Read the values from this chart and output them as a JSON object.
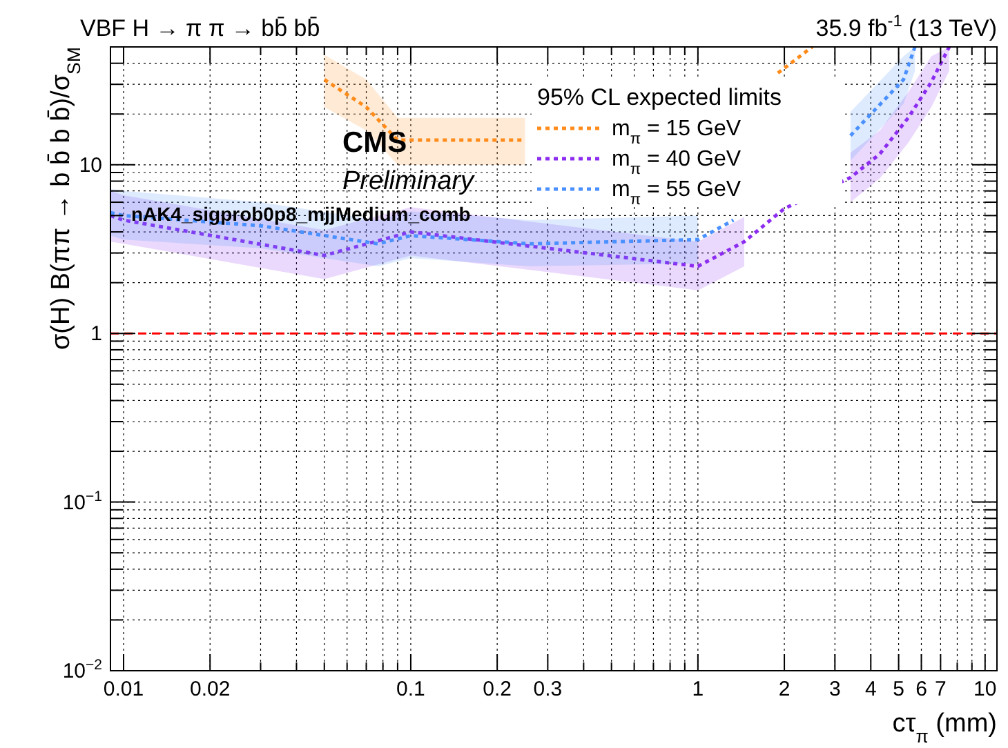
{
  "chart_data": {
    "type": "line",
    "title": "VBF H → π π → bb̄ bb̄",
    "subtitle": "35.9 fb$^{-1}$ (13 TeV)",
    "xlabel": "cτ$_{π}$ (mm)",
    "ylabel": "σ(H) B(ππ → b b̄ b b̄)/σ$_{SM}$",
    "legend_title": "95% CL expected limits",
    "annotations": [
      "CMS",
      "Preliminary",
      "nAK4_sigprob0p8_mjjMedium_comb"
    ],
    "log": "xy",
    "grid": true,
    "legend": "top right",
    "line_style": "dotted",
    "marker": "none",
    "xlim": [
      0.009,
      11
    ],
    "ylim": [
      0.01,
      50
    ],
    "xticks": [
      {
        "value": 0.009,
        "label": null
      },
      0.01,
      0.02,
      {
        "value": 0.03,
        "label": null
      },
      {
        "value": 0.04,
        "label": null
      },
      {
        "value": 0.05,
        "label": null
      },
      {
        "value": 0.06,
        "label": null
      },
      {
        "value": 0.07,
        "label": null
      },
      {
        "value": 0.08,
        "label": null
      },
      {
        "value": 0.09,
        "label": null
      },
      0.1,
      0.2,
      0.3,
      {
        "value": 0.4,
        "label": null
      },
      {
        "value": 0.5,
        "label": null
      },
      {
        "value": 0.6,
        "label": null
      },
      {
        "value": 0.7,
        "label": null
      },
      {
        "value": 0.8,
        "label": null
      },
      {
        "value": 0.9,
        "label": null
      },
      1,
      2,
      3,
      4,
      5,
      6,
      7,
      {
        "value": 8,
        "label": null
      },
      {
        "value": 9,
        "label": null
      },
      10
    ],
    "yticks": [
      {
        "value": 0.01,
        "label": "10$^{−2}$"
      },
      {
        "value": 0.02,
        "label": null
      },
      {
        "value": 0.03,
        "label": null
      },
      {
        "value": 0.04,
        "label": null
      },
      {
        "value": 0.05,
        "label": null
      },
      {
        "value": 0.06,
        "label": null
      },
      {
        "value": 0.07,
        "label": null
      },
      {
        "value": 0.08,
        "label": null
      },
      {
        "value": 0.09,
        "label": null
      },
      {
        "value": 0.1,
        "label": "10$^{−1}$"
      },
      {
        "value": 0.2,
        "label": null
      },
      {
        "value": 0.3,
        "label": null
      },
      {
        "value": 0.4,
        "label": null
      },
      {
        "value": 0.5,
        "label": null
      },
      {
        "value": 0.6,
        "label": null
      },
      {
        "value": 0.7,
        "label": null
      },
      {
        "value": 0.8,
        "label": null
      },
      {
        "value": 0.9,
        "label": null
      },
      1,
      {
        "value": 2,
        "label": null
      },
      {
        "value": 3,
        "label": null
      },
      {
        "value": 4,
        "label": null
      },
      {
        "value": 5,
        "label": null
      },
      {
        "value": 6,
        "label": null
      },
      {
        "value": 7,
        "label": null
      },
      {
        "value": 8,
        "label": null
      },
      {
        "value": 9,
        "label": null
      },
      10,
      {
        "value": 20,
        "label": null
      },
      {
        "value": 30,
        "label": null
      },
      {
        "value": 40,
        "label": null
      }
    ],
    "ref_lines": [
      {
        "axis": "y",
        "value": 1,
        "color": "#ff0000",
        "line_style": "dashed"
      }
    ],
    "series": [
      {
        "name": "m$_{π}$ = 15 GeV",
        "color": "#ff8c1a",
        "x": [
          0.05,
          0.07,
          0.09,
          0.25,
          1,
          1.9,
          2.5
        ],
        "values": [
          32,
          22,
          14,
          14,
          null,
          35,
          50
        ],
        "lower": [
          22,
          16,
          10,
          10,
          null,
          null,
          null
        ],
        "upper": [
          45,
          32,
          19,
          19,
          null,
          null,
          null
        ]
      },
      {
        "name": "m$_{π}$ = 40 GeV",
        "color": "#8c2cf0",
        "x": [
          0.009,
          0.01,
          0.05,
          0.1,
          1,
          1.45,
          2,
          3.4,
          4.3,
          5.4,
          6.5,
          7.5
        ],
        "values": [
          5,
          4.7,
          2.9,
          4,
          2.5,
          3.5,
          5.5,
          8.4,
          11.6,
          19,
          31,
          50
        ],
        "lower": [
          3.5,
          3.4,
          2.1,
          2.9,
          1.8,
          2.5,
          null,
          6,
          8.3,
          13.5,
          22,
          36
        ],
        "upper": [
          7,
          6.6,
          4.1,
          5.6,
          3.5,
          4.9,
          null,
          11.8,
          16,
          27,
          44,
          50
        ]
      },
      {
        "name": "m$_{π}$ = 55 GeV",
        "color": "#4a90ff",
        "x": [
          0.009,
          0.01,
          0.03,
          0.077,
          0.1,
          0.26,
          1,
          1.33,
          2,
          3.4,
          5.2,
          5.7
        ],
        "values": [
          5.2,
          5,
          4.35,
          3.4,
          3.8,
          3.4,
          3.6,
          4.7,
          null,
          14.9,
          32,
          50
        ],
        "lower": [
          3.8,
          3.6,
          3.2,
          2.5,
          2.8,
          2.5,
          2.6,
          null,
          null,
          10.6,
          23,
          36
        ],
        "upper": [
          7.2,
          7,
          6,
          4.7,
          5.3,
          4.7,
          5,
          null,
          null,
          20.6,
          44,
          50
        ]
      }
    ]
  }
}
